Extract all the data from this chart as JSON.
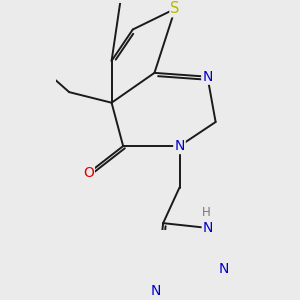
{
  "background_color": "#ebebeb",
  "bond_color": "#1a1a1a",
  "atom_colors": {
    "S": "#b8b800",
    "N": "#0000cc",
    "O": "#dd0000",
    "H": "#777777",
    "C": "#1a1a1a"
  },
  "figsize": [
    3.0,
    3.0
  ],
  "dpi": 100
}
